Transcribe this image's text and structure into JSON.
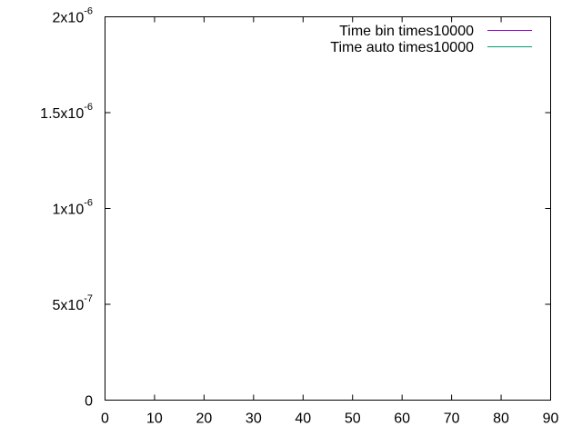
{
  "chart_data": {
    "type": "line",
    "title": "",
    "xlabel": "",
    "ylabel": "",
    "xlim": [
      0,
      90
    ],
    "ylim": [
      0,
      2e-06
    ],
    "x_ticks": [
      {
        "value": 0,
        "label": "0"
      },
      {
        "value": 10,
        "label": "10"
      },
      {
        "value": 20,
        "label": "20"
      },
      {
        "value": 30,
        "label": "30"
      },
      {
        "value": 40,
        "label": "40"
      },
      {
        "value": 50,
        "label": "50"
      },
      {
        "value": 60,
        "label": "60"
      },
      {
        "value": 70,
        "label": "70"
      },
      {
        "value": 80,
        "label": "80"
      },
      {
        "value": 90,
        "label": "90"
      }
    ],
    "y_ticks": [
      {
        "value": 0,
        "mantissa": "0",
        "exponent": ""
      },
      {
        "value": 5e-07,
        "mantissa": "5x10",
        "exponent": "-7"
      },
      {
        "value": 1e-06,
        "mantissa": "1x10",
        "exponent": "-6"
      },
      {
        "value": 1.5e-06,
        "mantissa": "1.5x10",
        "exponent": "-6"
      },
      {
        "value": 2e-06,
        "mantissa": "2x10",
        "exponent": "-6"
      }
    ],
    "grid": false,
    "legend_position": "top-right",
    "series": [
      {
        "name": "Time bin times10000",
        "color": "#9400d3",
        "x": [],
        "y": []
      },
      {
        "name": "Time auto times10000",
        "color": "#009e73",
        "x": [],
        "y": []
      }
    ]
  }
}
